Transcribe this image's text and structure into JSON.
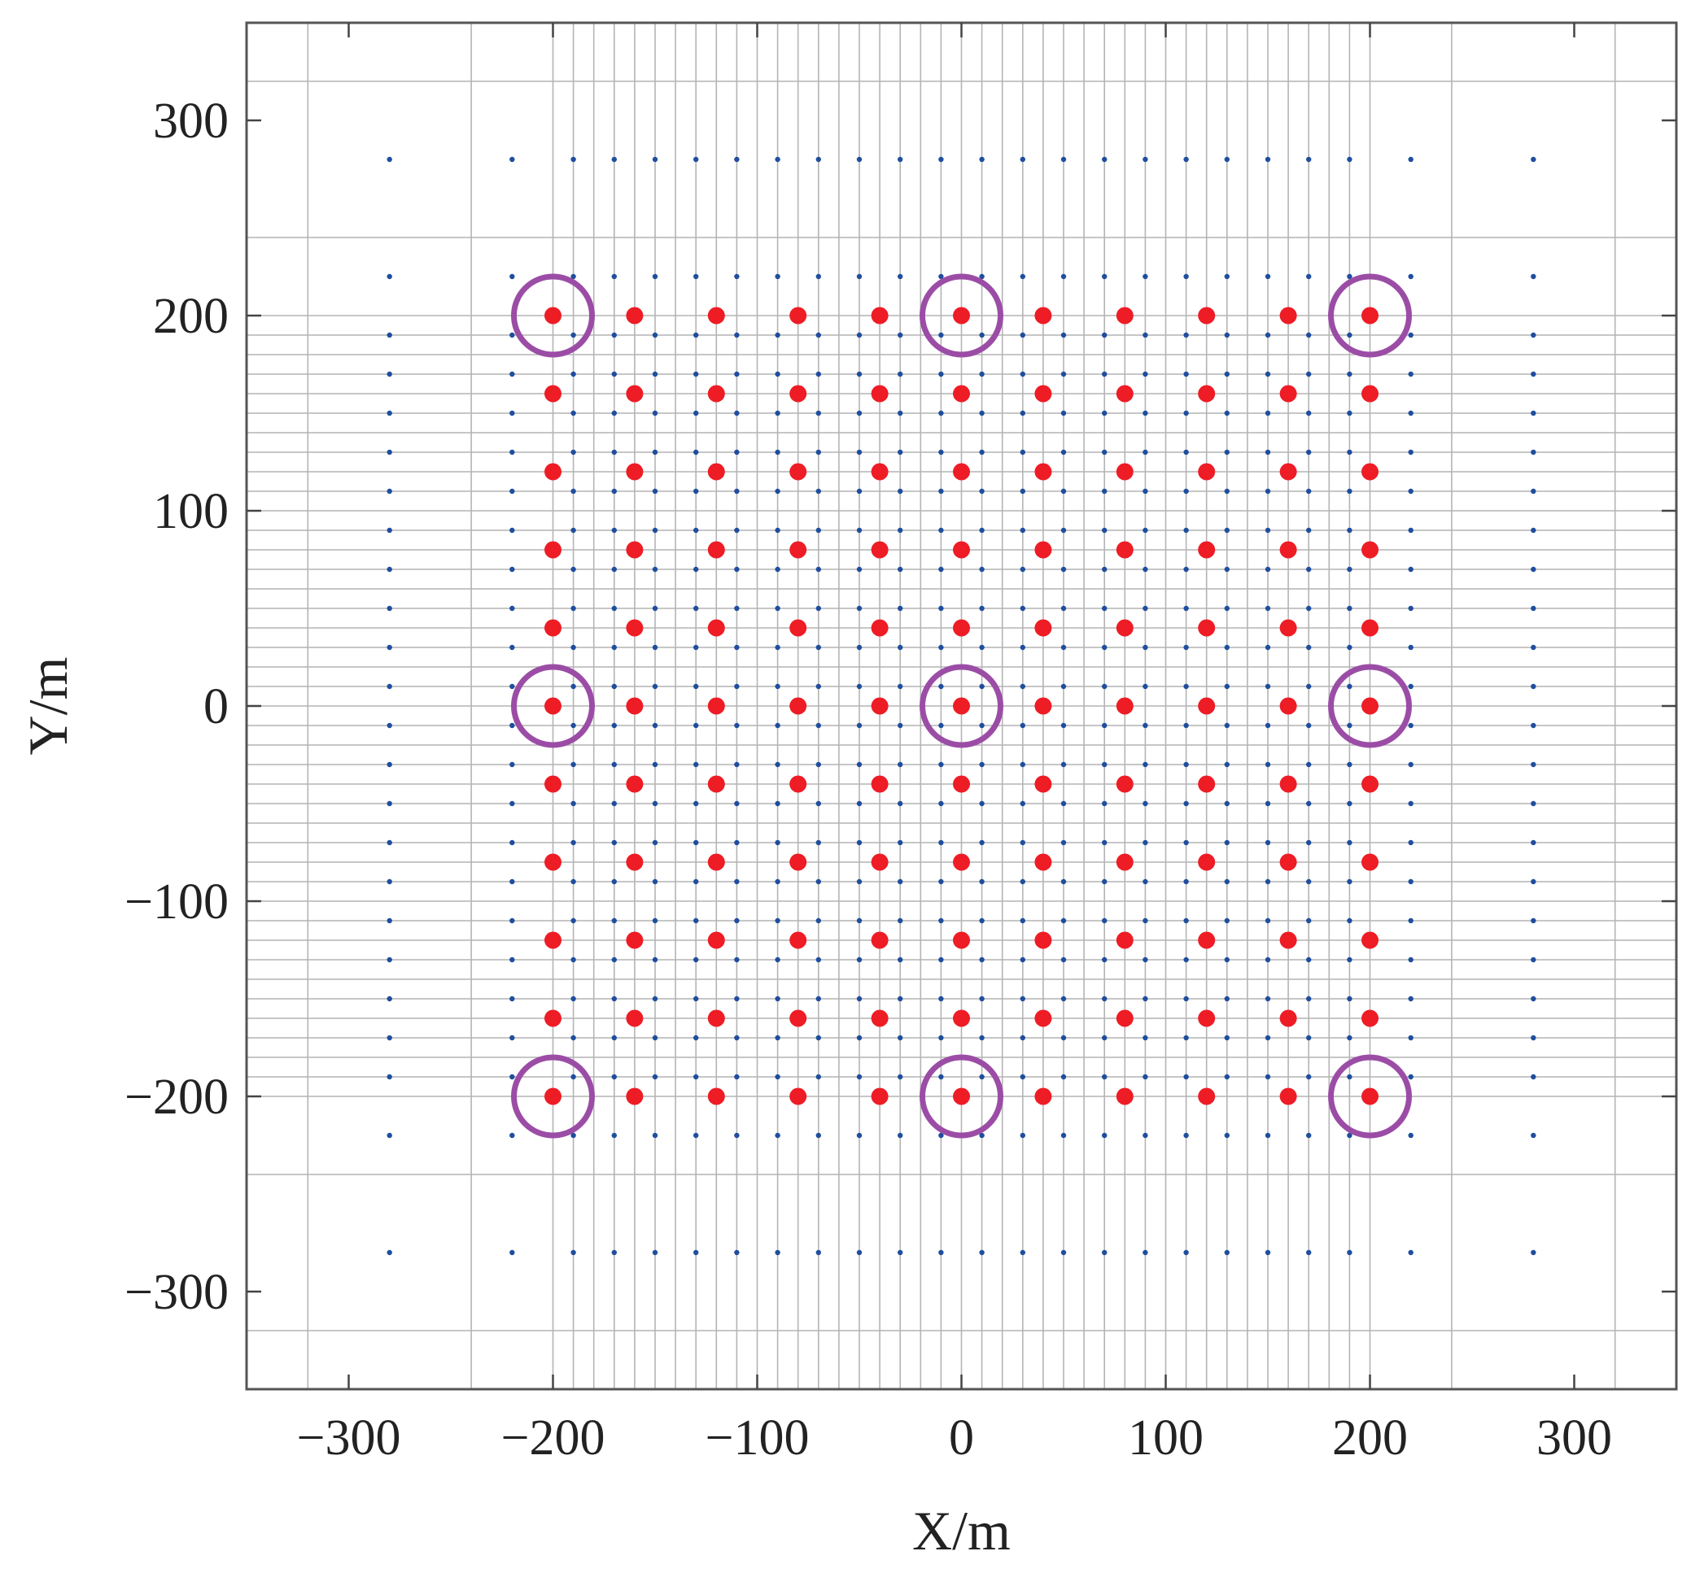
{
  "chart_data": {
    "type": "scatter",
    "title": "",
    "xlabel": "X/m",
    "ylabel": "Y/m",
    "xlim": [
      -350,
      350
    ],
    "ylim": [
      -350,
      350
    ],
    "x_ticks": [
      -300,
      -200,
      -100,
      0,
      100,
      200,
      300
    ],
    "y_ticks": [
      -300,
      -200,
      -100,
      0,
      100,
      200,
      300
    ],
    "x_tick_labels": [
      "−300",
      "−200",
      "−100",
      "0",
      "100",
      "200",
      "300"
    ],
    "y_tick_labels": [
      "−300",
      "−200",
      "−100",
      "0",
      "100",
      "200",
      "300"
    ],
    "grid": true,
    "grid_x": [
      -320,
      -240,
      -200,
      -190,
      -180,
      -170,
      -160,
      -150,
      -140,
      -130,
      -120,
      -110,
      -100,
      -90,
      -80,
      -70,
      -60,
      -50,
      -40,
      -30,
      -20,
      -10,
      0,
      10,
      20,
      30,
      40,
      50,
      60,
      70,
      80,
      90,
      100,
      110,
      120,
      130,
      140,
      150,
      160,
      170,
      180,
      190,
      200,
      240,
      320
    ],
    "grid_y": [
      -320,
      -240,
      -200,
      -190,
      -180,
      -170,
      -160,
      -150,
      -140,
      -130,
      -120,
      -110,
      -100,
      -90,
      -80,
      -70,
      -60,
      -50,
      -40,
      -30,
      -20,
      -10,
      0,
      10,
      20,
      30,
      40,
      50,
      60,
      70,
      80,
      90,
      100,
      110,
      120,
      130,
      140,
      150,
      160,
      170,
      180,
      190,
      200,
      240,
      320
    ],
    "series": [
      {
        "marker": "small-dot",
        "color": "#1f4e9e",
        "x_rows": [
          -280,
          -220,
          -190,
          -170,
          -150,
          -130,
          -110,
          -90,
          -70,
          -50,
          -30,
          -10,
          10,
          30,
          50,
          70,
          90,
          110,
          130,
          150,
          170,
          190,
          220,
          280
        ],
        "y_rows": [
          280,
          220,
          190,
          170,
          150,
          130,
          110,
          90,
          70,
          50,
          30,
          10,
          -10,
          -30,
          -50,
          -70,
          -90,
          -110,
          -130,
          -150,
          -170,
          -190,
          -220,
          -280
        ],
        "sparse_rows": [
          280,
          -280
        ],
        "sparse_cols": [
          -280,
          280
        ]
      },
      {
        "marker": "filled-circle",
        "color": "#ee1c25",
        "x_values": [
          -200,
          -160,
          -120,
          -80,
          -40,
          0,
          40,
          80,
          120,
          160,
          200
        ],
        "y_values": [
          200,
          160,
          120,
          80,
          40,
          0,
          -40,
          -80,
          -120,
          -160,
          -200
        ]
      },
      {
        "marker": "open-circle",
        "color": "#9b4da6",
        "points": [
          [
            -200,
            200
          ],
          [
            0,
            200
          ],
          [
            200,
            200
          ],
          [
            -200,
            0
          ],
          [
            0,
            0
          ],
          [
            200,
            0
          ],
          [
            -200,
            -200
          ],
          [
            0,
            -200
          ],
          [
            200,
            -200
          ]
        ]
      }
    ]
  }
}
